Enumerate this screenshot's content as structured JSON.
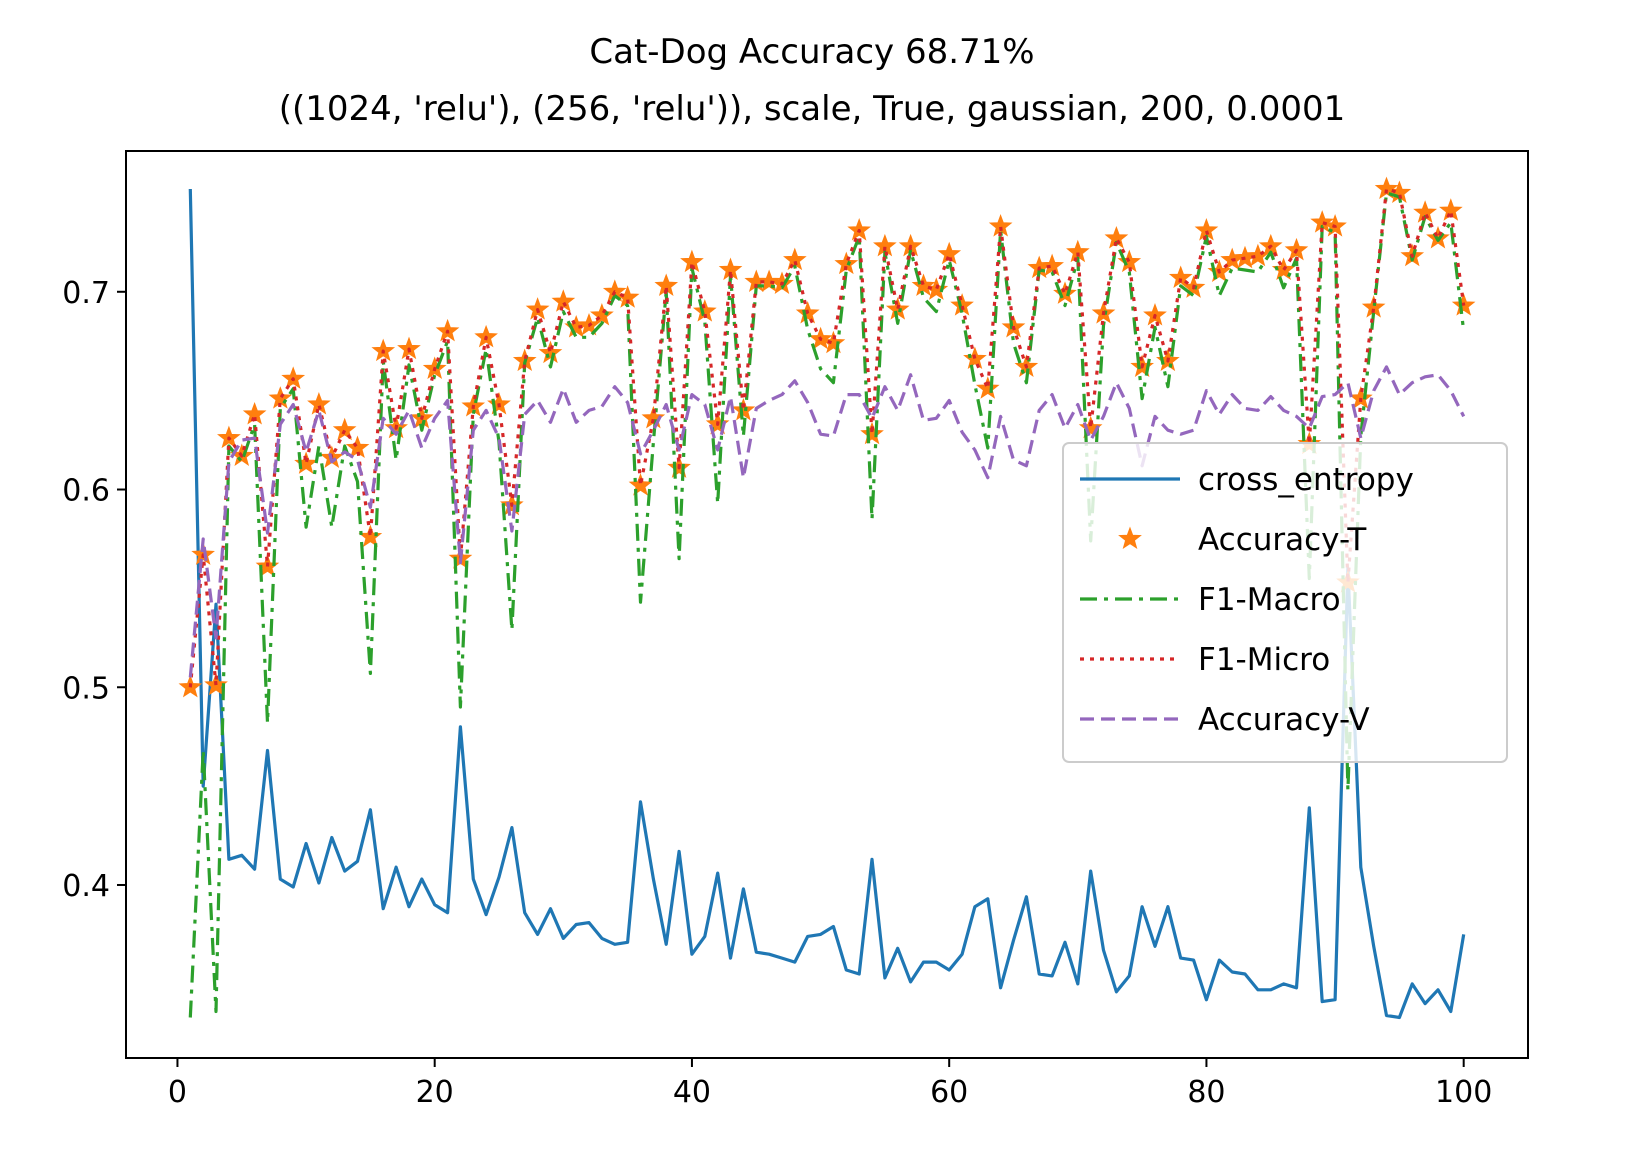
{
  "chart_data": {
    "type": "line",
    "title": "Cat-Dog Accuracy 68.71%",
    "subtitle": "((1024, 'relu'), (256, 'relu')), scale, True, gaussian, 200, 0.0001",
    "xlabel": "",
    "ylabel": "",
    "xlim": [
      -4,
      105
    ],
    "ylim": [
      0.3125,
      0.7712
    ],
    "x_ticks": [
      0,
      20,
      40,
      60,
      80,
      100
    ],
    "y_ticks": [
      0.4,
      0.5,
      0.6,
      0.7
    ],
    "x_tick_labels": [
      "0",
      "20",
      "40",
      "60",
      "80",
      "100"
    ],
    "y_tick_labels": [
      "0.4",
      "0.5",
      "0.6",
      "0.7"
    ],
    "grid": false,
    "legend_position": "center-right",
    "x_start": 1,
    "series": [
      {
        "name": "cross_entropy",
        "color": "#1f77b4",
        "style": "solid",
        "values": [
          0.752,
          0.45,
          0.542,
          0.413,
          0.415,
          0.408,
          0.468,
          0.403,
          0.399,
          0.421,
          0.401,
          0.424,
          0.407,
          0.412,
          0.438,
          0.388,
          0.409,
          0.389,
          0.403,
          0.39,
          0.386,
          0.48,
          0.403,
          0.385,
          0.404,
          0.429,
          0.386,
          0.375,
          0.388,
          0.373,
          0.38,
          0.381,
          0.373,
          0.37,
          0.371,
          0.442,
          0.403,
          0.37,
          0.417,
          0.365,
          0.374,
          0.406,
          0.363,
          0.398,
          0.366,
          0.365,
          0.363,
          0.361,
          0.374,
          0.375,
          0.379,
          0.357,
          0.355,
          0.413,
          0.353,
          0.368,
          0.351,
          0.361,
          0.361,
          0.357,
          0.365,
          0.389,
          0.393,
          0.348,
          0.372,
          0.394,
          0.355,
          0.354,
          0.371,
          0.35,
          0.407,
          0.367,
          0.346,
          0.354,
          0.389,
          0.369,
          0.389,
          0.363,
          0.362,
          0.342,
          0.362,
          0.356,
          0.355,
          0.347,
          0.347,
          0.35,
          0.348,
          0.439,
          0.341,
          0.342,
          0.56,
          0.409,
          0.369,
          0.334,
          0.333,
          0.35,
          0.34,
          0.347,
          0.336,
          0.375
        ]
      },
      {
        "name": "Accuracy-T",
        "color": "#ff7f0e",
        "style": "star-markers",
        "values": [
          0.5,
          0.567,
          0.501,
          0.626,
          0.617,
          0.638,
          0.561,
          0.646,
          0.656,
          0.613,
          0.643,
          0.616,
          0.63,
          0.621,
          0.576,
          0.67,
          0.631,
          0.671,
          0.636,
          0.661,
          0.68,
          0.565,
          0.642,
          0.677,
          0.643,
          0.592,
          0.665,
          0.691,
          0.669,
          0.695,
          0.682,
          0.683,
          0.688,
          0.7,
          0.697,
          0.602,
          0.636,
          0.703,
          0.611,
          0.715,
          0.69,
          0.633,
          0.711,
          0.64,
          0.705,
          0.705,
          0.704,
          0.716,
          0.689,
          0.676,
          0.674,
          0.714,
          0.731,
          0.628,
          0.723,
          0.691,
          0.723,
          0.703,
          0.701,
          0.719,
          0.693,
          0.666,
          0.651,
          0.733,
          0.682,
          0.662,
          0.712,
          0.713,
          0.699,
          0.72,
          0.631,
          0.689,
          0.727,
          0.715,
          0.662,
          0.688,
          0.665,
          0.707,
          0.702,
          0.731,
          0.71,
          0.716,
          0.717,
          0.718,
          0.723,
          0.711,
          0.721,
          0.623,
          0.735,
          0.733,
          0.553,
          0.646,
          0.692,
          0.752,
          0.75,
          0.718,
          0.74,
          0.727,
          0.741,
          0.693
        ]
      },
      {
        "name": "F1-Macro",
        "color": "#2ca02c",
        "style": "dashdot",
        "values": [
          0.333,
          0.468,
          0.336,
          0.622,
          0.614,
          0.633,
          0.482,
          0.641,
          0.651,
          0.581,
          0.622,
          0.581,
          0.622,
          0.604,
          0.507,
          0.665,
          0.615,
          0.663,
          0.63,
          0.658,
          0.675,
          0.49,
          0.638,
          0.671,
          0.624,
          0.529,
          0.664,
          0.687,
          0.662,
          0.69,
          0.677,
          0.677,
          0.684,
          0.698,
          0.693,
          0.543,
          0.624,
          0.7,
          0.565,
          0.712,
          0.685,
          0.593,
          0.708,
          0.627,
          0.703,
          0.703,
          0.702,
          0.713,
          0.681,
          0.661,
          0.654,
          0.711,
          0.728,
          0.585,
          0.72,
          0.684,
          0.721,
          0.697,
          0.69,
          0.716,
          0.689,
          0.653,
          0.621,
          0.731,
          0.674,
          0.654,
          0.711,
          0.71,
          0.693,
          0.717,
          0.574,
          0.683,
          0.725,
          0.71,
          0.646,
          0.682,
          0.652,
          0.703,
          0.698,
          0.728,
          0.698,
          0.712,
          0.711,
          0.71,
          0.72,
          0.702,
          0.717,
          0.555,
          0.733,
          0.73,
          0.448,
          0.627,
          0.69,
          0.75,
          0.748,
          0.716,
          0.738,
          0.726,
          0.735,
          0.68
        ]
      },
      {
        "name": "F1-Micro",
        "color": "#d62728",
        "style": "dotted",
        "values": [
          0.5,
          0.567,
          0.501,
          0.626,
          0.617,
          0.638,
          0.561,
          0.646,
          0.656,
          0.613,
          0.643,
          0.616,
          0.63,
          0.621,
          0.576,
          0.67,
          0.631,
          0.671,
          0.636,
          0.661,
          0.68,
          0.565,
          0.642,
          0.677,
          0.643,
          0.592,
          0.665,
          0.691,
          0.669,
          0.695,
          0.682,
          0.683,
          0.688,
          0.7,
          0.697,
          0.602,
          0.636,
          0.703,
          0.611,
          0.715,
          0.69,
          0.633,
          0.711,
          0.64,
          0.705,
          0.705,
          0.704,
          0.716,
          0.689,
          0.676,
          0.674,
          0.714,
          0.731,
          0.628,
          0.723,
          0.691,
          0.723,
          0.703,
          0.701,
          0.719,
          0.693,
          0.666,
          0.651,
          0.733,
          0.682,
          0.662,
          0.712,
          0.713,
          0.699,
          0.72,
          0.631,
          0.689,
          0.727,
          0.715,
          0.662,
          0.688,
          0.665,
          0.707,
          0.702,
          0.731,
          0.71,
          0.716,
          0.717,
          0.718,
          0.723,
          0.711,
          0.721,
          0.623,
          0.735,
          0.733,
          0.553,
          0.646,
          0.692,
          0.752,
          0.75,
          0.718,
          0.74,
          0.727,
          0.741,
          0.693
        ]
      },
      {
        "name": "Accuracy-V",
        "color": "#9467bd",
        "style": "dashed",
        "values": [
          0.505,
          0.575,
          0.525,
          0.614,
          0.625,
          0.626,
          0.578,
          0.633,
          0.643,
          0.619,
          0.64,
          0.614,
          0.619,
          0.615,
          0.591,
          0.636,
          0.628,
          0.64,
          0.621,
          0.636,
          0.645,
          0.563,
          0.63,
          0.64,
          0.626,
          0.579,
          0.638,
          0.645,
          0.634,
          0.651,
          0.634,
          0.64,
          0.642,
          0.652,
          0.644,
          0.618,
          0.63,
          0.643,
          0.62,
          0.648,
          0.643,
          0.62,
          0.647,
          0.606,
          0.641,
          0.645,
          0.648,
          0.655,
          0.644,
          0.628,
          0.627,
          0.648,
          0.648,
          0.636,
          0.652,
          0.64,
          0.658,
          0.635,
          0.636,
          0.645,
          0.629,
          0.62,
          0.606,
          0.637,
          0.615,
          0.612,
          0.64,
          0.648,
          0.631,
          0.643,
          0.625,
          0.637,
          0.654,
          0.641,
          0.612,
          0.637,
          0.63,
          0.628,
          0.63,
          0.65,
          0.638,
          0.648,
          0.641,
          0.64,
          0.647,
          0.64,
          0.637,
          0.631,
          0.647,
          0.648,
          0.654,
          0.626,
          0.65,
          0.662,
          0.648,
          0.654,
          0.657,
          0.658,
          0.65,
          0.637
        ]
      }
    ]
  }
}
